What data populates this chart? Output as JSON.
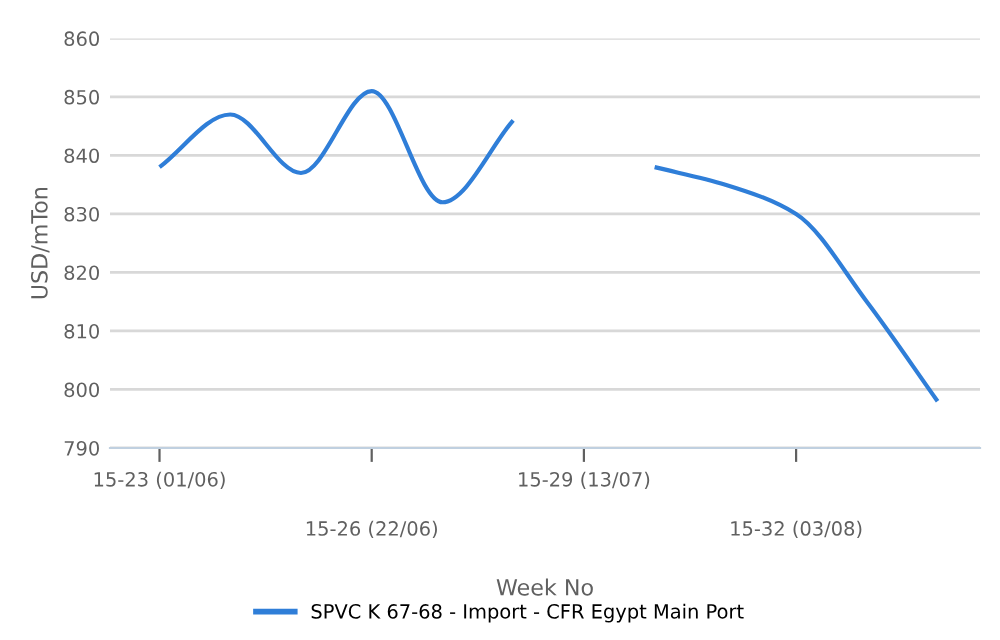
{
  "chart_data": {
    "type": "line",
    "xlabel": "Week No",
    "ylabel": "USD/mTon",
    "categories": [
      "15-23 (01/06)",
      null,
      null,
      "15-26 (22/06)",
      null,
      null,
      "15-29 (13/07)",
      null,
      null,
      "15-32 (03/08)",
      null,
      null
    ],
    "series": [
      {
        "name": "SPVC K 67-68 - Import - CFR Egypt Main Port",
        "color": "#2f7ed8",
        "values": [
          838,
          847,
          837,
          851,
          832,
          846,
          null,
          838,
          835,
          830,
          815,
          798
        ]
      }
    ],
    "ylim": [
      790,
      860
    ],
    "yticks": [
      790,
      800,
      810,
      820,
      830,
      840,
      850,
      860
    ],
    "grid": "y",
    "legend": "bottom",
    "marker": "none",
    "line_style": "solid"
  }
}
